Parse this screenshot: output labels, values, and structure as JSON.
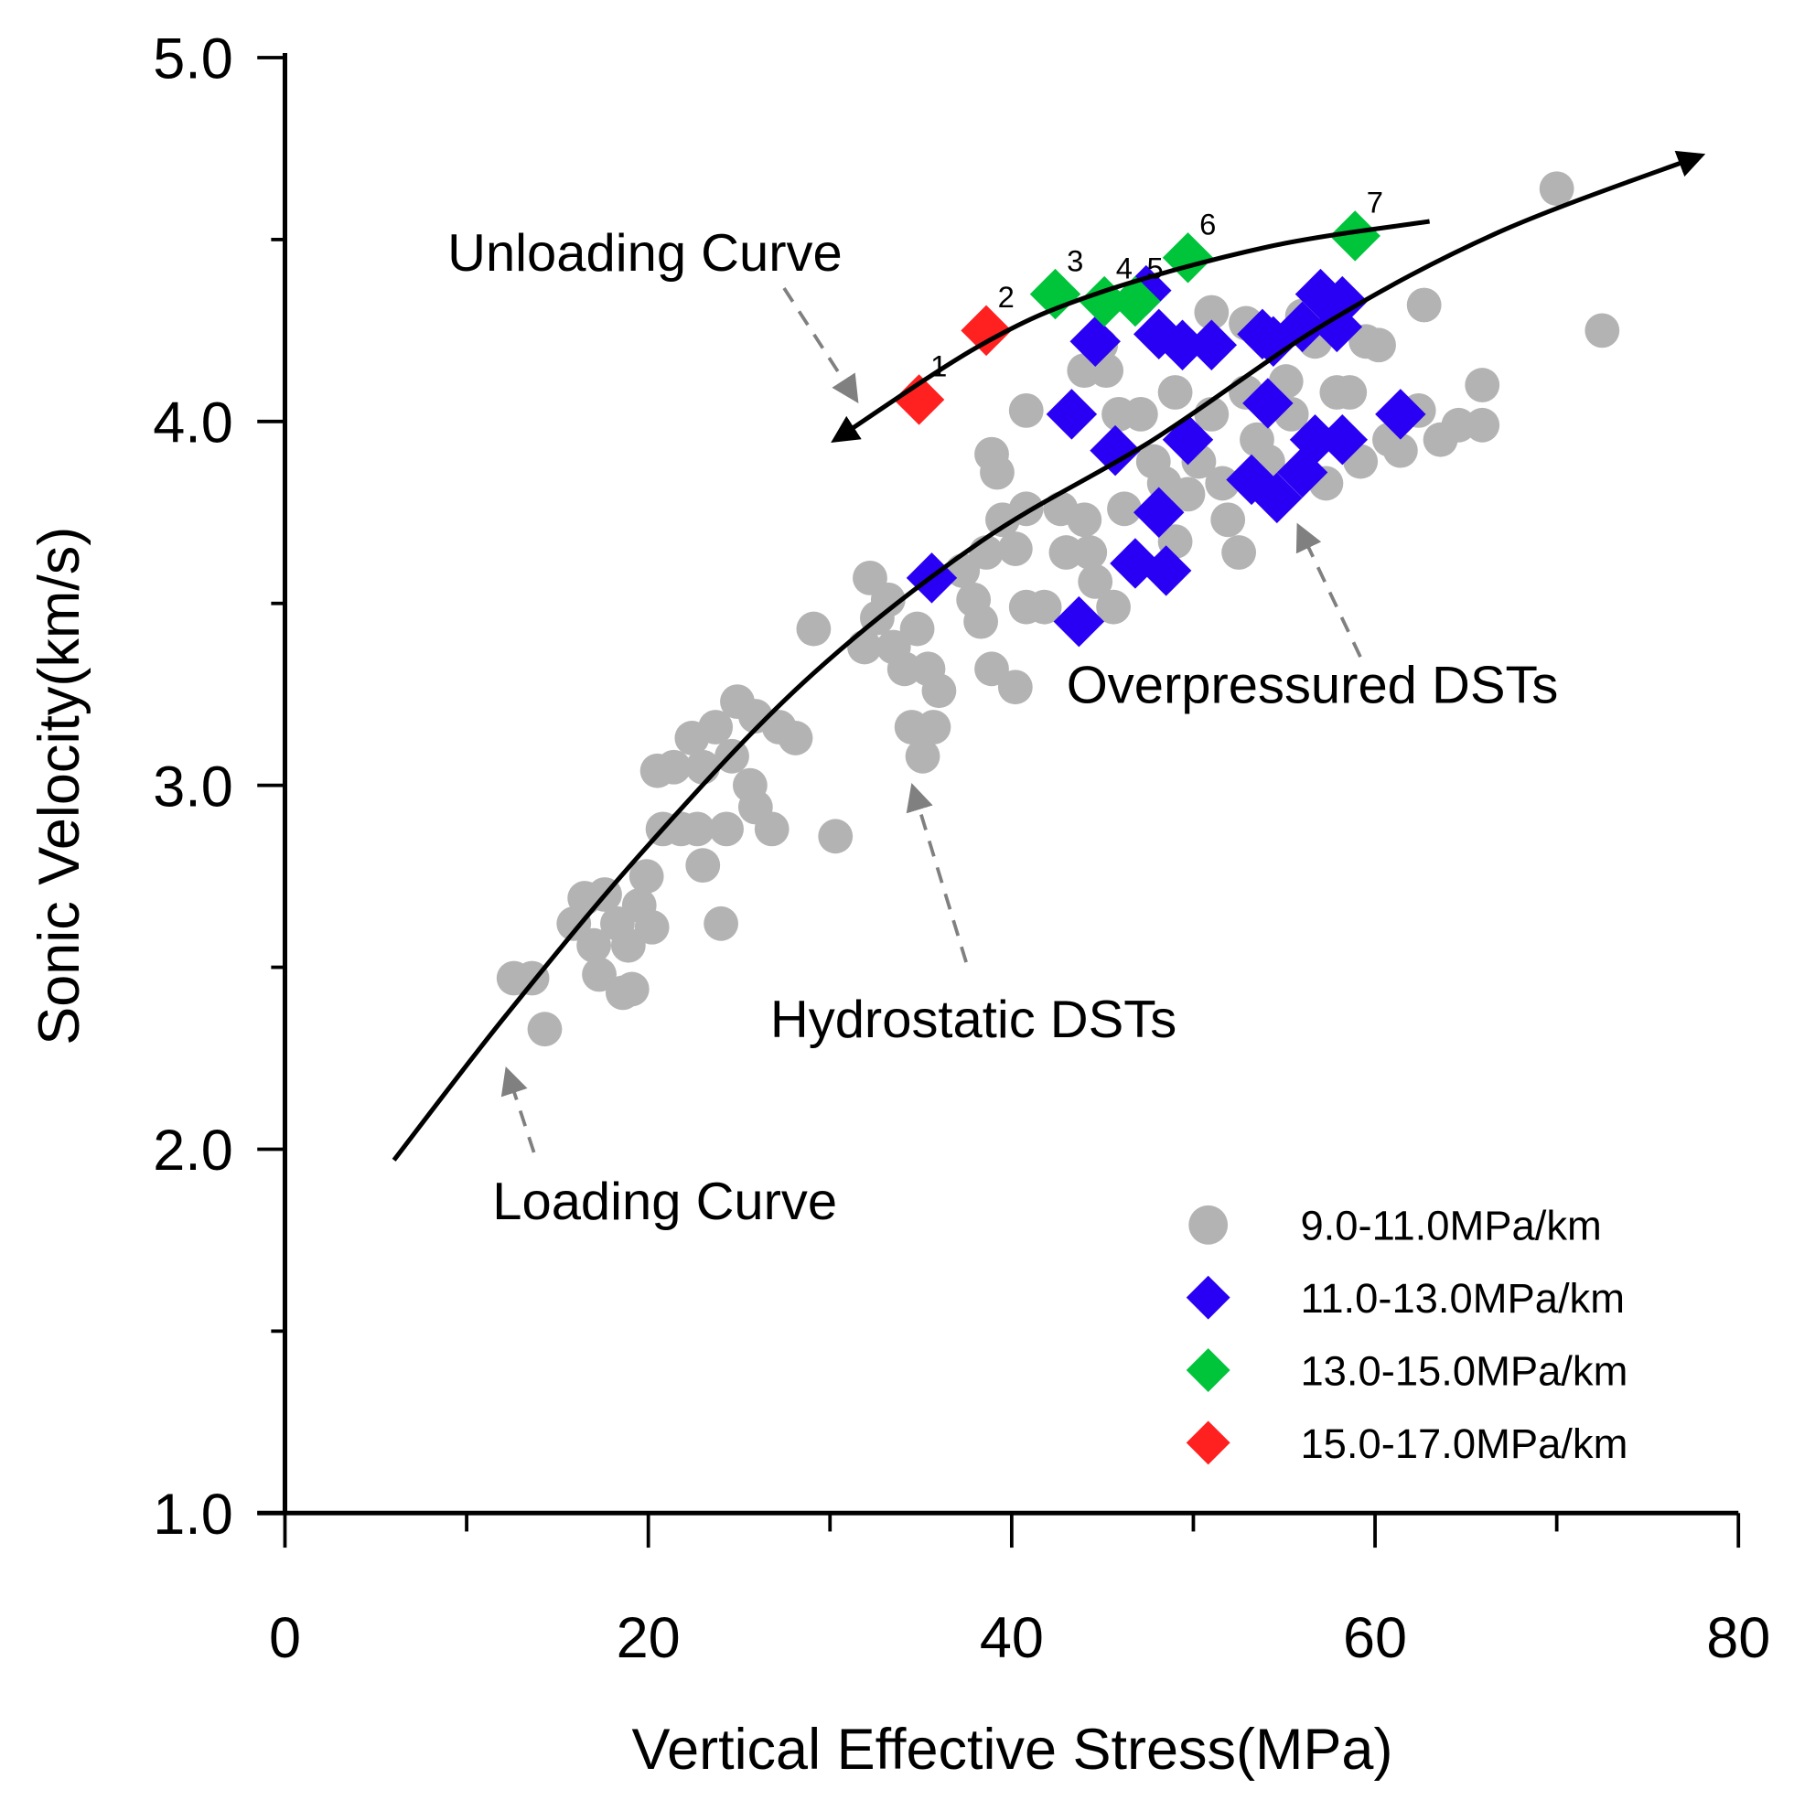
{
  "chart_data": {
    "type": "scatter",
    "title": "",
    "xlabel": "Vertical Effective Stress(MPa)",
    "ylabel": "Sonic Velocity(km/s)",
    "xlim": [
      0,
      80
    ],
    "ylim": [
      1.0,
      5.0
    ],
    "xticks": [
      0,
      20,
      40,
      60,
      80
    ],
    "xtick_labels": [
      "0",
      "20",
      "40",
      "60",
      "80"
    ],
    "xminor": [
      10,
      30,
      50,
      70
    ],
    "yticks": [
      1.0,
      2.0,
      3.0,
      4.0,
      5.0
    ],
    "ytick_labels": [
      "1.0",
      "2.0",
      "3.0",
      "4.0",
      "5.0"
    ],
    "yminor": [
      1.5,
      2.5,
      3.5,
      4.5
    ],
    "grid": false,
    "legend_position": "bottom-right",
    "series": [
      {
        "name": "9.0-11.0MPa/km",
        "marker": "circle",
        "color": "#b3b3b3",
        "points": [
          [
            12.6,
            2.47
          ],
          [
            13.6,
            2.47
          ],
          [
            14.3,
            2.33
          ],
          [
            15.9,
            2.62
          ],
          [
            16.5,
            2.69
          ],
          [
            17.6,
            2.7
          ],
          [
            17.0,
            2.56
          ],
          [
            17.3,
            2.48
          ],
          [
            18.6,
            2.43
          ],
          [
            18.3,
            2.62
          ],
          [
            18.9,
            2.56
          ],
          [
            19.5,
            2.67
          ],
          [
            19.9,
            2.75
          ],
          [
            20.2,
            2.61
          ],
          [
            19.1,
            2.44
          ],
          [
            20.5,
            3.04
          ],
          [
            21.4,
            3.05
          ],
          [
            22.4,
            3.13
          ],
          [
            23.0,
            3.05
          ],
          [
            23.7,
            3.16
          ],
          [
            24.6,
            3.08
          ],
          [
            24.9,
            3.23
          ],
          [
            25.9,
            3.19
          ],
          [
            24.0,
            2.62
          ],
          [
            23.0,
            2.78
          ],
          [
            20.8,
            2.88
          ],
          [
            21.8,
            2.88
          ],
          [
            22.7,
            2.88
          ],
          [
            24.3,
            2.88
          ],
          [
            25.9,
            2.94
          ],
          [
            26.8,
            2.88
          ],
          [
            25.6,
            3.0
          ],
          [
            27.2,
            3.16
          ],
          [
            28.1,
            3.13
          ],
          [
            29.1,
            3.43
          ],
          [
            30.3,
            2.86
          ],
          [
            32.2,
            3.57
          ],
          [
            32.6,
            3.46
          ],
          [
            33.2,
            3.51
          ],
          [
            31.9,
            3.38
          ],
          [
            33.5,
            3.38
          ],
          [
            34.1,
            3.32
          ],
          [
            34.8,
            3.43
          ],
          [
            34.5,
            3.16
          ],
          [
            35.1,
            3.08
          ],
          [
            35.7,
            3.16
          ],
          [
            36.0,
            3.26
          ],
          [
            35.4,
            3.32
          ],
          [
            37.3,
            3.59
          ],
          [
            37.9,
            3.51
          ],
          [
            38.3,
            3.45
          ],
          [
            38.6,
            3.64
          ],
          [
            38.9,
            3.91
          ],
          [
            39.2,
            3.86
          ],
          [
            39.5,
            3.73
          ],
          [
            40.2,
            3.65
          ],
          [
            40.8,
            3.76
          ],
          [
            40.2,
            3.27
          ],
          [
            38.9,
            3.32
          ],
          [
            40.8,
            4.03
          ],
          [
            40.8,
            3.49
          ],
          [
            41.8,
            3.49
          ],
          [
            42.7,
            3.76
          ],
          [
            43.0,
            3.64
          ],
          [
            44.0,
            3.73
          ],
          [
            44.3,
            3.64
          ],
          [
            44.6,
            3.56
          ],
          [
            45.6,
            3.49
          ],
          [
            44.0,
            4.14
          ],
          [
            45.2,
            4.14
          ],
          [
            45.9,
            4.02
          ],
          [
            46.2,
            3.76
          ],
          [
            47.1,
            4.02
          ],
          [
            47.8,
            3.89
          ],
          [
            48.4,
            3.83
          ],
          [
            49.0,
            3.67
          ],
          [
            49.7,
            3.8
          ],
          [
            50.3,
            3.89
          ],
          [
            51.0,
            4.02
          ],
          [
            51.6,
            3.83
          ],
          [
            51.9,
            3.73
          ],
          [
            52.5,
            3.64
          ],
          [
            52.9,
            4.08
          ],
          [
            52.9,
            4.27
          ],
          [
            53.5,
            3.95
          ],
          [
            54.1,
            3.89
          ],
          [
            55.1,
            4.11
          ],
          [
            55.4,
            4.02
          ],
          [
            56.0,
            4.29
          ],
          [
            56.7,
            4.22
          ],
          [
            57.3,
            3.83
          ],
          [
            57.9,
            4.08
          ],
          [
            58.6,
            4.08
          ],
          [
            59.2,
            3.89
          ],
          [
            59.5,
            4.22
          ],
          [
            60.2,
            4.21
          ],
          [
            60.8,
            3.95
          ],
          [
            61.4,
            3.92
          ],
          [
            62.4,
            4.03
          ],
          [
            62.7,
            4.32
          ],
          [
            63.6,
            3.95
          ],
          [
            64.6,
            3.99
          ],
          [
            65.9,
            3.99
          ],
          [
            65.9,
            4.1
          ],
          [
            70.0,
            4.64
          ],
          [
            72.5,
            4.25
          ],
          [
            44.9,
            4.21
          ],
          [
            51.0,
            4.3
          ],
          [
            49.0,
            4.08
          ]
        ]
      },
      {
        "name": "11.0-13.0MPa/km",
        "marker": "diamond",
        "color": "#2a00f5",
        "points": [
          [
            35.6,
            3.57
          ],
          [
            43.7,
            3.45
          ],
          [
            43.3,
            4.02
          ],
          [
            44.6,
            4.22
          ],
          [
            45.7,
            3.92
          ],
          [
            46.8,
            3.61
          ],
          [
            48.5,
            3.59
          ],
          [
            48.1,
            3.75
          ],
          [
            48.1,
            4.24
          ],
          [
            49.4,
            4.21
          ],
          [
            51.0,
            4.21
          ],
          [
            49.7,
            3.95
          ],
          [
            53.2,
            3.84
          ],
          [
            54.6,
            3.79
          ],
          [
            53.8,
            4.24
          ],
          [
            54.1,
            4.05
          ],
          [
            54.4,
            4.22
          ],
          [
            56.0,
            4.26
          ],
          [
            57.0,
            4.35
          ],
          [
            58.2,
            4.33
          ],
          [
            56.0,
            3.86
          ],
          [
            56.7,
            3.95
          ],
          [
            58.2,
            3.95
          ],
          [
            61.4,
            4.02
          ],
          [
            57.9,
            4.26
          ],
          [
            47.4,
            4.36
          ]
        ]
      },
      {
        "name": "13.0-15.0MPa/km",
        "marker": "diamond",
        "color": "#00c43a",
        "points": [
          [
            42.4,
            4.35
          ],
          [
            45.1,
            4.33
          ],
          [
            46.8,
            4.33
          ],
          [
            49.7,
            4.45
          ],
          [
            58.9,
            4.51
          ]
        ],
        "labels": [
          "3",
          "4",
          "5",
          "6",
          "7"
        ]
      },
      {
        "name": "15.0-17.0MPa/km",
        "marker": "diamond",
        "color": "#ff2020",
        "points": [
          [
            34.9,
            4.06
          ],
          [
            38.6,
            4.25
          ]
        ],
        "labels": [
          "1",
          "2"
        ]
      }
    ],
    "curves": [
      {
        "name": "Loading Curve",
        "points": [
          [
            6.0,
            1.97
          ],
          [
            12.2,
            2.37
          ],
          [
            19.9,
            2.83
          ],
          [
            28.7,
            3.29
          ],
          [
            38.3,
            3.67
          ],
          [
            47.8,
            3.95
          ],
          [
            57.3,
            4.27
          ],
          [
            66.8,
            4.52
          ],
          [
            77.9,
            4.73
          ]
        ]
      },
      {
        "name": "Unloading Curve",
        "points": [
          [
            63.0,
            4.55
          ],
          [
            54.1,
            4.48
          ],
          [
            44.6,
            4.35
          ],
          [
            38.3,
            4.21
          ],
          [
            30.3,
            3.95
          ]
        ]
      }
    ],
    "annotations": {
      "unloading": "Unloading Curve",
      "loading": "Loading Curve",
      "hydrostatic": "Hydrostatic DSTs",
      "overpressured": "Overpressured DSTs"
    }
  }
}
